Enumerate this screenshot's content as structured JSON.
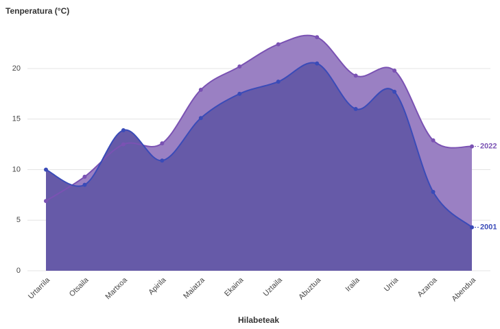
{
  "chart_data": {
    "type": "area",
    "y_axis_title": "Tenperatura (°C)",
    "x_axis_title": "Hilabeteak",
    "categories": [
      "Urtarrila",
      "Otsaila",
      "Martxoa",
      "Apirila",
      "Maiatza",
      "Ekaina",
      "Uztaila",
      "Abuztua",
      "Iraila",
      "Urria",
      "Azaroa",
      "Abendua"
    ],
    "series": [
      {
        "name": "2022",
        "color": "#7a52b3",
        "fill": "#9a80c3",
        "values": [
          6.9,
          9.3,
          12.5,
          12.6,
          17.9,
          20.2,
          22.4,
          23.1,
          19.3,
          19.8,
          12.9,
          12.3
        ]
      },
      {
        "name": "2001",
        "color": "#3a4bb8",
        "fill": "#665aa8",
        "values": [
          10,
          8.5,
          13.9,
          10.9,
          15.1,
          17.5,
          18.7,
          20.5,
          16,
          17.7,
          7.8,
          4.3
        ]
      }
    ],
    "ylim": [
      0,
      24
    ],
    "yticks": [
      0,
      5,
      10,
      15,
      20
    ],
    "grid": true
  }
}
